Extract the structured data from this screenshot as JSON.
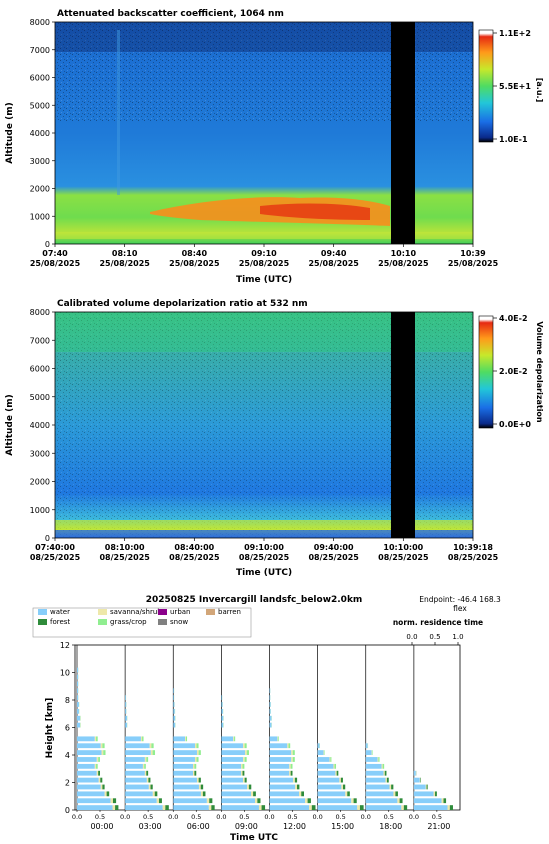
{
  "colors": {
    "axis": "#000000",
    "gap": "#000000"
  },
  "chart_data": [
    {
      "type": "heatmap",
      "title": "Attenuated backscatter coefficient, 1064 nm",
      "xlabel": "Time (UTC)",
      "ylabel": "Altitude (m)",
      "ylim": [
        0,
        8000
      ],
      "yticks": [
        "0",
        "1000",
        "2000",
        "3000",
        "4000",
        "5000",
        "6000",
        "7000",
        "8000"
      ],
      "xticks": [
        {
          "time": "07:40",
          "date": "25/08/2025"
        },
        {
          "time": "08:10",
          "date": "25/08/2025"
        },
        {
          "time": "08:40",
          "date": "25/08/2025"
        },
        {
          "time": "09:10",
          "date": "25/08/2025"
        },
        {
          "time": "09:40",
          "date": "25/08/2025"
        },
        {
          "time": "10:10",
          "date": "25/08/2025"
        },
        {
          "time": "10:39",
          "date": "25/08/2025"
        }
      ],
      "colorbar": {
        "ticks": [
          "1.1E+2",
          "5.5E+1",
          "1.0E-1"
        ],
        "label": "[a.u.]"
      },
      "data_gap": [
        "10:03",
        "10:14"
      ]
    },
    {
      "type": "heatmap",
      "title": "Calibrated volume depolarization ratio at 532 nm",
      "xlabel": "Time (UTC)",
      "ylabel": "Altitude (m)",
      "ylim": [
        0,
        8000
      ],
      "yticks": [
        "0",
        "1000",
        "2000",
        "3000",
        "4000",
        "5000",
        "6000",
        "7000",
        "8000"
      ],
      "xticks": [
        {
          "time": "07:40:00",
          "date": "08/25/2025"
        },
        {
          "time": "08:10:00",
          "date": "08/25/2025"
        },
        {
          "time": "08:40:00",
          "date": "08/25/2025"
        },
        {
          "time": "09:10:00",
          "date": "08/25/2025"
        },
        {
          "time": "09:40:00",
          "date": "08/25/2025"
        },
        {
          "time": "10:10:00",
          "date": "08/25/2025"
        },
        {
          "time": "10:39:18",
          "date": "08/25/2025"
        }
      ],
      "colorbar": {
        "ticks": [
          "4.0E-2",
          "2.0E-2",
          "0.0E+0"
        ],
        "label": "Volume depolarization"
      },
      "data_gap": [
        "10:03",
        "10:14"
      ]
    },
    {
      "type": "bar",
      "title": "20250825   Invercargill   landsfc_below2.0km",
      "endpoint": "Endpoint: -46.4 168.3",
      "endpoint_sub": "flex",
      "top_axis_label": "norm. residence time",
      "top_ticks": [
        "0.0",
        "0.5",
        "1.0"
      ],
      "xlabel": "Time UTC",
      "ylabel": "Height [km]",
      "ylim": [
        0,
        12
      ],
      "yticks": [
        "0",
        "2",
        "4",
        "6",
        "8",
        "10",
        "12"
      ],
      "panel_ticks": [
        "0.0",
        "0.5"
      ],
      "panels": [
        "00:00",
        "03:00",
        "06:00",
        "09:00",
        "12:00",
        "15:00",
        "18:00",
        "21:00"
      ],
      "legend": [
        {
          "name": "water",
          "color": "#87cefa"
        },
        {
          "name": "forest",
          "color": "#2e8b3a"
        },
        {
          "name": "savanna/shrub",
          "color": "#eee8aa"
        },
        {
          "name": "grass/crop",
          "color": "#90ee90"
        },
        {
          "name": "urban",
          "color": "#8b008b"
        },
        {
          "name": "snow",
          "color": "#808080"
        },
        {
          "name": "barren",
          "color": "#d2a679"
        }
      ],
      "profiles": [
        [
          0.9,
          0.85,
          0.7,
          0.6,
          0.55,
          0.5,
          0.45,
          0.5,
          0.62,
          0.6,
          0.45,
          0,
          0.08,
          0.08,
          0.05,
          0.05,
          0.03,
          0.03,
          0.03,
          0.03,
          0.03,
          0,
          0,
          0
        ],
        [
          0.95,
          0.8,
          0.7,
          0.6,
          0.55,
          0.5,
          0.45,
          0.5,
          0.65,
          0.62,
          0.4,
          0,
          0.05,
          0.05,
          0.03,
          0.03,
          0.02,
          0,
          0,
          0,
          0,
          0,
          0,
          0
        ],
        [
          0.9,
          0.85,
          0.7,
          0.65,
          0.6,
          0.5,
          0.5,
          0.55,
          0.6,
          0.55,
          0.3,
          0,
          0.05,
          0.05,
          0.04,
          0.03,
          0.02,
          0.02,
          0,
          0,
          0,
          0,
          0,
          0
        ],
        [
          0.95,
          0.85,
          0.75,
          0.65,
          0.55,
          0.5,
          0.5,
          0.55,
          0.6,
          0.55,
          0.3,
          0,
          0.05,
          0.05,
          0.04,
          0.03,
          0.02,
          0,
          0,
          0,
          0,
          0,
          0,
          0
        ],
        [
          1.0,
          0.9,
          0.75,
          0.65,
          0.6,
          0.5,
          0.5,
          0.55,
          0.55,
          0.45,
          0.2,
          0,
          0.05,
          0.05,
          0.03,
          0.03,
          0.02,
          0.02,
          0,
          0,
          0,
          0,
          0,
          0
        ],
        [
          1.0,
          0.85,
          0.7,
          0.6,
          0.55,
          0.45,
          0.4,
          0.3,
          0.15,
          0.05,
          0,
          0,
          0,
          0,
          0,
          0,
          0,
          0,
          0,
          0,
          0,
          0,
          0,
          0
        ],
        [
          0.9,
          0.8,
          0.7,
          0.6,
          0.5,
          0.45,
          0.4,
          0.3,
          0.15,
          0.05,
          0,
          0,
          0,
          0,
          0,
          0,
          0,
          0,
          0,
          0,
          0,
          0,
          0,
          0
        ],
        [
          0.85,
          0.7,
          0.5,
          0.3,
          0.15,
          0.05,
          0,
          0,
          0,
          0,
          0,
          0,
          0,
          0,
          0,
          0,
          0,
          0,
          0,
          0,
          0,
          0,
          0,
          0
        ]
      ]
    }
  ]
}
